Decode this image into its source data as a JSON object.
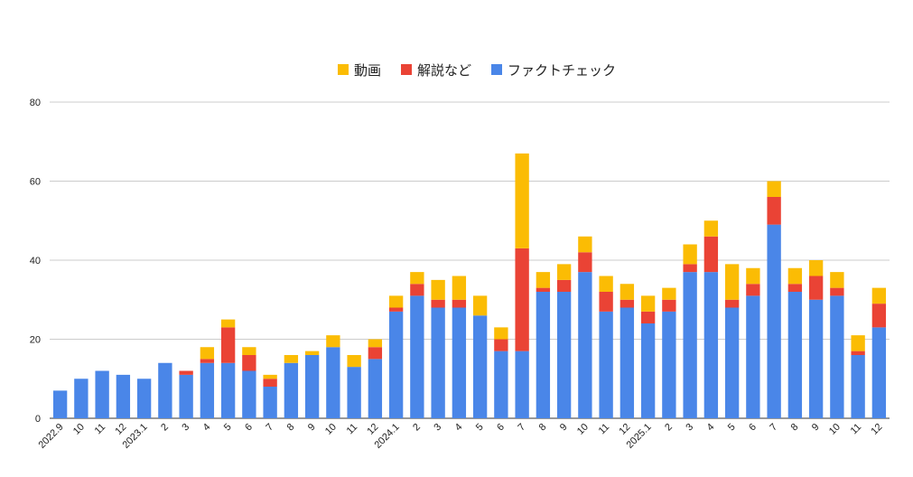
{
  "chart_data": {
    "type": "bar",
    "stacked": true,
    "title": "",
    "xlabel": "",
    "ylabel": "",
    "ylim": [
      0,
      80
    ],
    "yticks": [
      0,
      20,
      40,
      60,
      80
    ],
    "grid": true,
    "legend_position": "top-center",
    "categories": [
      "2022.9",
      "10",
      "11",
      "12",
      "2023.1",
      "2",
      "3",
      "4",
      "5",
      "6",
      "7",
      "8",
      "9",
      "10",
      "11",
      "12",
      "2024.1",
      "2",
      "3",
      "4",
      "5",
      "6",
      "7",
      "8",
      "9",
      "10",
      "11",
      "12",
      "2025.1",
      "2",
      "3",
      "4",
      "5",
      "6",
      "7",
      "8",
      "9",
      "10",
      "11",
      "12"
    ],
    "series": [
      {
        "name": "ファクトチェック",
        "color": "#4a86e8",
        "values": [
          7,
          10,
          12,
          11,
          10,
          14,
          11,
          14,
          14,
          12,
          8,
          14,
          16,
          18,
          13,
          15,
          27,
          31,
          28,
          28,
          26,
          17,
          17,
          32,
          32,
          37,
          27,
          28,
          24,
          27,
          37,
          37,
          28,
          31,
          49,
          32,
          30,
          31,
          16,
          23
        ]
      },
      {
        "name": "解説など",
        "color": "#ea4335",
        "values": [
          0,
          0,
          0,
          0,
          0,
          0,
          1,
          1,
          9,
          4,
          2,
          0,
          0,
          0,
          0,
          3,
          1,
          3,
          2,
          2,
          0,
          3,
          26,
          1,
          3,
          5,
          5,
          2,
          3,
          3,
          2,
          9,
          2,
          3,
          7,
          2,
          6,
          2,
          1,
          6
        ]
      },
      {
        "name": "動画",
        "color": "#fbbc04",
        "values": [
          0,
          0,
          0,
          0,
          0,
          0,
          0,
          3,
          2,
          2,
          1,
          2,
          1,
          3,
          3,
          2,
          3,
          3,
          5,
          6,
          5,
          3,
          24,
          4,
          4,
          4,
          4,
          4,
          4,
          3,
          5,
          4,
          9,
          4,
          4,
          4,
          4,
          4,
          4,
          4
        ]
      }
    ],
    "legend_order": [
      "動画",
      "解説など",
      "ファクトチェック"
    ]
  }
}
